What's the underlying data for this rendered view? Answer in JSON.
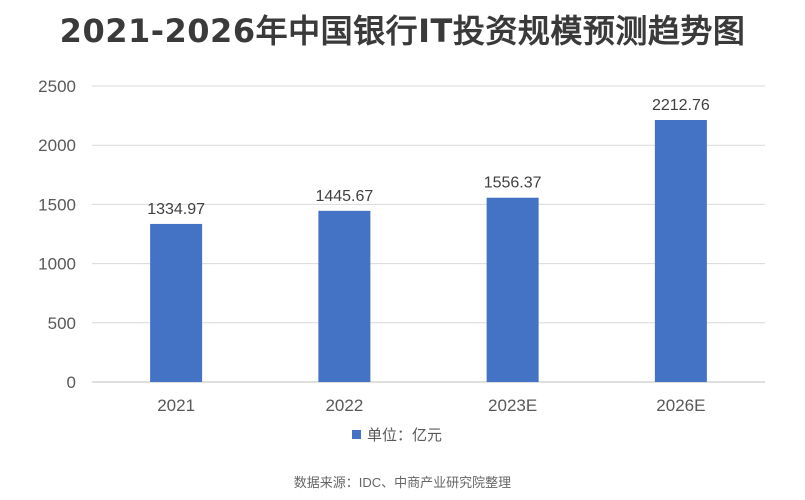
{
  "page": {
    "title": "2021-2026年中国银行IT投资规模预测趋势图",
    "source": "数据来源：IDC、中商产业研究院整理"
  },
  "chart_data": {
    "type": "bar",
    "title": "2021-2026年中国银行IT投资规模预测趋势图",
    "categories": [
      "2021",
      "2022",
      "2023E",
      "2026E"
    ],
    "series": [
      {
        "name": "单位：亿元",
        "values": [
          1334.97,
          1445.67,
          1556.37,
          2212.76
        ]
      }
    ],
    "data_labels": [
      "1334.97",
      "1445.67",
      "1556.37",
      "2212.76"
    ],
    "xlabel": "",
    "ylabel": "",
    "ylim": [
      0,
      2500
    ],
    "yticks": [
      0,
      500,
      1000,
      1500,
      2000,
      2500
    ],
    "grid": true,
    "legend_position": "bottom",
    "colors": {
      "bar": "#4472C4",
      "grid": "#d9d9d9",
      "axis_text": "#595959",
      "label_text": "#404040"
    }
  }
}
